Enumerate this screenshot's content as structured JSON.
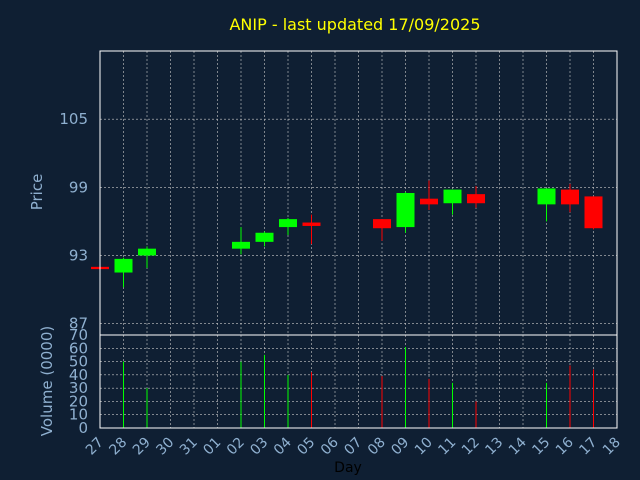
{
  "chart_data": [
    {
      "type": "candlestick",
      "title": "ANIP - last updated 17/09/2025",
      "ylabel": "Price",
      "ylim": [
        86,
        111
      ],
      "y_ticks": [
        87,
        93,
        99,
        105
      ],
      "grid": true,
      "x_tick_labels": [
        "27",
        "28",
        "29",
        "30",
        "31",
        "01",
        "02",
        "03",
        "04",
        "05",
        "06",
        "07",
        "08",
        "09",
        "10",
        "11",
        "12",
        "13",
        "14",
        "15",
        "16",
        "17",
        "18"
      ],
      "candles": [
        {
          "x": "27",
          "open": 92.0,
          "high": 92.0,
          "low": 92.0,
          "close": 91.8
        },
        {
          "x": "28",
          "open": 91.5,
          "high": 92.8,
          "low": 90.2,
          "close": 92.7
        },
        {
          "x": "29",
          "open": 93.0,
          "high": 93.8,
          "low": 91.9,
          "close": 93.6
        },
        {
          "x": "02",
          "open": 93.6,
          "high": 95.5,
          "low": 93.1,
          "close": 94.2
        },
        {
          "x": "03",
          "open": 94.2,
          "high": 95.1,
          "low": 93.8,
          "close": 95.0
        },
        {
          "x": "04",
          "open": 95.5,
          "high": 96.3,
          "low": 94.8,
          "close": 96.2
        },
        {
          "x": "05",
          "open": 95.9,
          "high": 96.6,
          "low": 94.0,
          "close": 95.6
        },
        {
          "x": "08",
          "open": 96.2,
          "high": 96.2,
          "low": 94.3,
          "close": 95.4
        },
        {
          "x": "09",
          "open": 95.5,
          "high": 98.6,
          "low": 95.0,
          "close": 98.5
        },
        {
          "x": "10",
          "open": 98.0,
          "high": 99.6,
          "low": 97.0,
          "close": 97.5
        },
        {
          "x": "11",
          "open": 97.6,
          "high": 98.8,
          "low": 96.6,
          "close": 98.8
        },
        {
          "x": "12",
          "open": 98.4,
          "high": 99.1,
          "low": 97.2,
          "close": 97.6
        },
        {
          "x": "15",
          "open": 97.5,
          "high": 98.9,
          "low": 96.0,
          "close": 98.9
        },
        {
          "x": "16",
          "open": 98.8,
          "high": 99.3,
          "low": 96.8,
          "close": 97.5
        },
        {
          "x": "17",
          "open": 98.2,
          "high": 98.2,
          "low": 95.3,
          "close": 95.4
        }
      ]
    },
    {
      "type": "bar",
      "ylabel": "Volume (0000)",
      "xlabel": "Day",
      "ylim": [
        0,
        70
      ],
      "y_ticks": [
        0,
        10,
        20,
        30,
        40,
        50,
        60,
        70
      ],
      "x_tick_labels": [
        "27",
        "28",
        "29",
        "30",
        "31",
        "01",
        "02",
        "03",
        "04",
        "05",
        "06",
        "07",
        "08",
        "09",
        "10",
        "11",
        "12",
        "13",
        "14",
        "15",
        "16",
        "17",
        "18"
      ],
      "bars": [
        {
          "x": "28",
          "value": 50,
          "color": "#00ff00"
        },
        {
          "x": "29",
          "value": 30,
          "color": "#00ff00"
        },
        {
          "x": "02",
          "value": 50,
          "color": "#00ff00"
        },
        {
          "x": "03",
          "value": 55,
          "color": "#00ff00"
        },
        {
          "x": "04",
          "value": 40,
          "color": "#00ff00"
        },
        {
          "x": "05",
          "value": 42,
          "color": "#ff0000"
        },
        {
          "x": "08",
          "value": 39,
          "color": "#ff0000"
        },
        {
          "x": "09",
          "value": 61,
          "color": "#00ff00"
        },
        {
          "x": "10",
          "value": 37,
          "color": "#ff0000"
        },
        {
          "x": "11",
          "value": 34,
          "color": "#00ff00"
        },
        {
          "x": "12",
          "value": 20,
          "color": "#ff0000"
        },
        {
          "x": "15",
          "value": 34,
          "color": "#00ff00"
        },
        {
          "x": "16",
          "value": 47,
          "color": "#ff0000"
        },
        {
          "x": "17",
          "value": 44,
          "color": "#ff0000"
        }
      ]
    }
  ],
  "colors": {
    "background": "#0f1f33",
    "title": "#ffff00",
    "axis_text": "#8fb0d0",
    "frame": "#ffffff",
    "up": "#00ff00",
    "down": "#ff0000"
  }
}
